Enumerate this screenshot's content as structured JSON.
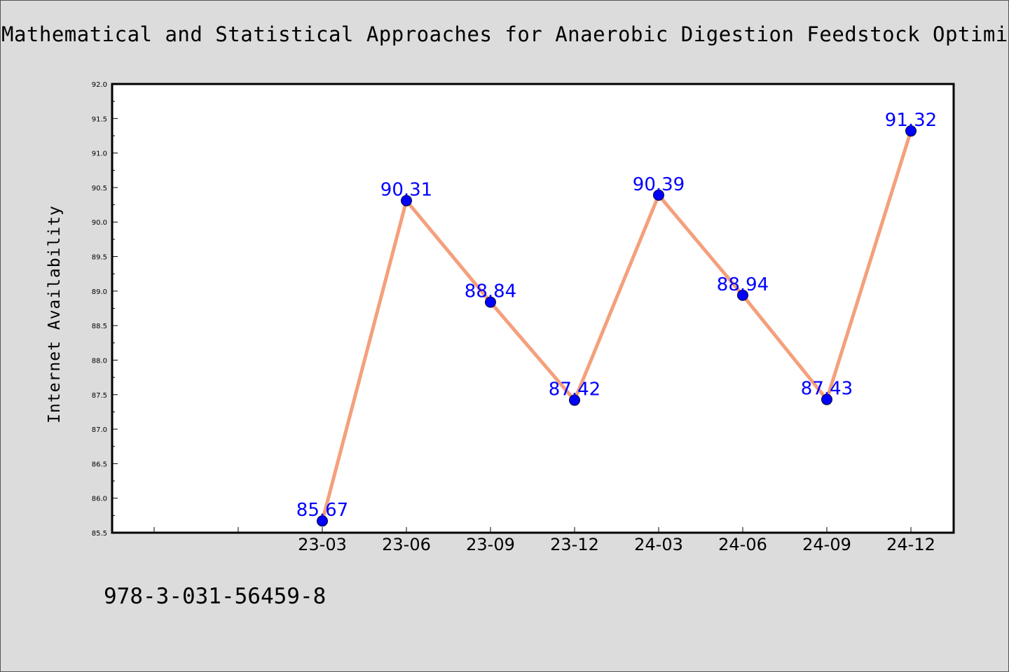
{
  "page": {
    "title": "Mathematical and Statistical Approaches for Anaerobic Digestion Feedstock Optimization",
    "footnote": "978-3-031-56459-8"
  },
  "colors": {
    "background": "#dcdcdc",
    "plot_background": "#ffffff",
    "line": "#f4a07c",
    "marker": "#0000ff",
    "data_label": "#0000ff"
  },
  "chart_data": {
    "type": "line",
    "title": "Mathematical and Statistical Approaches for Anaerobic Digestion Feedstock Optimization",
    "xlabel": "",
    "ylabel": "Internet Availability",
    "categories": [
      "23-03",
      "23-06",
      "23-09",
      "23-12",
      "24-03",
      "24-06",
      "24-09",
      "24-12"
    ],
    "series": [
      {
        "values": [
          85.67,
          90.31,
          88.84,
          87.42,
          90.39,
          88.94,
          87.43,
          91.32
        ]
      }
    ],
    "data_labels": [
      "85.67",
      "90.31",
      "88.84",
      "87.42",
      "90.39",
      "88.94",
      "87.43",
      "91.32"
    ],
    "ylim": [
      85.5,
      92.0
    ],
    "yticks": [
      "85.5",
      "86.0",
      "86.5",
      "87.0",
      "87.5",
      "88.0",
      "88.5",
      "89.0",
      "89.5",
      "90.0",
      "90.5",
      "91.0",
      "91.5",
      "92.0"
    ],
    "grid": false,
    "legend": "none"
  }
}
